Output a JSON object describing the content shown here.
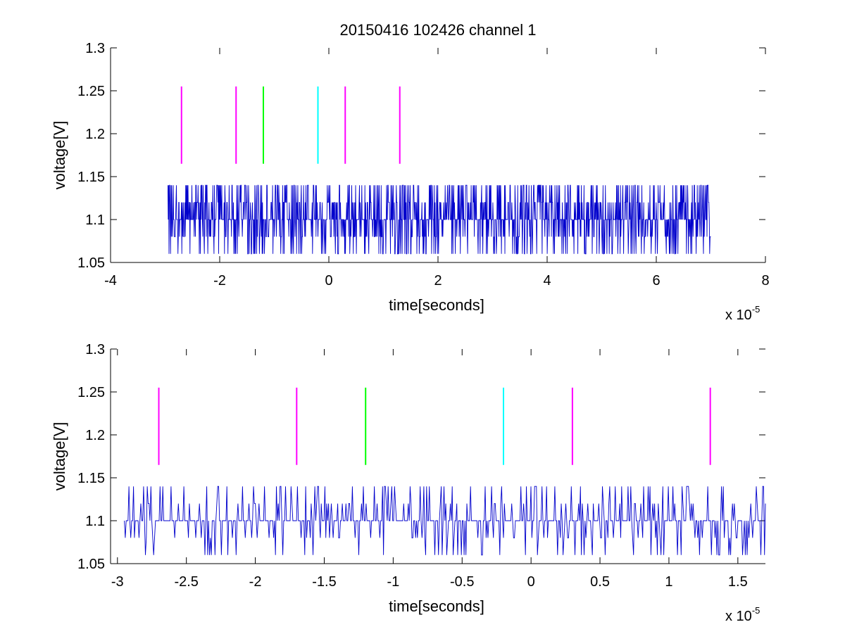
{
  "chart_data": [
    {
      "type": "line",
      "title": "20150416 102426 channel 1",
      "xlabel": "time[seconds]",
      "ylabel": "voltage[V]",
      "x_scale_label": "x 10",
      "x_scale_exponent": "-5",
      "xlim": [
        -4,
        8
      ],
      "ylim": [
        1.05,
        1.3
      ],
      "xticks": [
        -4,
        -2,
        0,
        2,
        4,
        6,
        8
      ],
      "xtick_labels": [
        "-4",
        "-2",
        "0",
        "2",
        "4",
        "6",
        "8"
      ],
      "yticks": [
        1.05,
        1.1,
        1.15,
        1.2,
        1.25,
        1.3
      ],
      "ytick_labels": [
        "1.05",
        "1.1",
        "1.15",
        "1.2",
        "1.25",
        "1.3"
      ],
      "signal": {
        "color": "#0000cc",
        "x_range": [
          -2.95,
          7.0
        ],
        "baseline": 1.1,
        "levels": [
          1.06,
          1.08,
          1.1,
          1.12,
          1.14
        ],
        "note": "noisy quantized voltage trace"
      },
      "markers": [
        {
          "x": -2.7,
          "y0": 1.165,
          "y1": 1.255,
          "color": "#ff00ff"
        },
        {
          "x": -1.7,
          "y0": 1.165,
          "y1": 1.255,
          "color": "#ff00ff"
        },
        {
          "x": -1.2,
          "y0": 1.165,
          "y1": 1.255,
          "color": "#00ff00"
        },
        {
          "x": -0.2,
          "y0": 1.165,
          "y1": 1.255,
          "color": "#00ffff"
        },
        {
          "x": 0.3,
          "y0": 1.165,
          "y1": 1.255,
          "color": "#ff00ff"
        },
        {
          "x": 1.3,
          "y0": 1.165,
          "y1": 1.255,
          "color": "#ff00ff"
        }
      ]
    },
    {
      "type": "line",
      "title": "",
      "xlabel": "time[seconds]",
      "ylabel": "voltage[V]",
      "x_scale_label": "x 10",
      "x_scale_exponent": "-5",
      "xlim": [
        -3.05,
        1.7
      ],
      "ylim": [
        1.05,
        1.3
      ],
      "xticks": [
        -3,
        -2.5,
        -2,
        -1.5,
        -1,
        -0.5,
        0,
        0.5,
        1,
        1.5
      ],
      "xtick_labels": [
        "-3",
        "-2.5",
        "-2",
        "-1.5",
        "-1",
        "-0.5",
        "0",
        "0.5",
        "1",
        "1.5"
      ],
      "yticks": [
        1.05,
        1.1,
        1.15,
        1.2,
        1.25,
        1.3
      ],
      "ytick_labels": [
        "1.05",
        "1.1",
        "1.15",
        "1.2",
        "1.25",
        "1.3"
      ],
      "signal": {
        "color": "#0000cc",
        "x_range": [
          -2.95,
          1.7
        ],
        "baseline": 1.1,
        "levels": [
          1.06,
          1.08,
          1.1,
          1.12,
          1.14
        ],
        "note": "noisy quantized voltage trace"
      },
      "markers": [
        {
          "x": -2.7,
          "y0": 1.165,
          "y1": 1.255,
          "color": "#ff00ff"
        },
        {
          "x": -1.7,
          "y0": 1.165,
          "y1": 1.255,
          "color": "#ff00ff"
        },
        {
          "x": -1.2,
          "y0": 1.165,
          "y1": 1.255,
          "color": "#00ff00"
        },
        {
          "x": -0.2,
          "y0": 1.165,
          "y1": 1.255,
          "color": "#00ffff"
        },
        {
          "x": 0.3,
          "y0": 1.165,
          "y1": 1.255,
          "color": "#ff00ff"
        },
        {
          "x": 1.3,
          "y0": 1.165,
          "y1": 1.255,
          "color": "#ff00ff"
        }
      ]
    }
  ]
}
